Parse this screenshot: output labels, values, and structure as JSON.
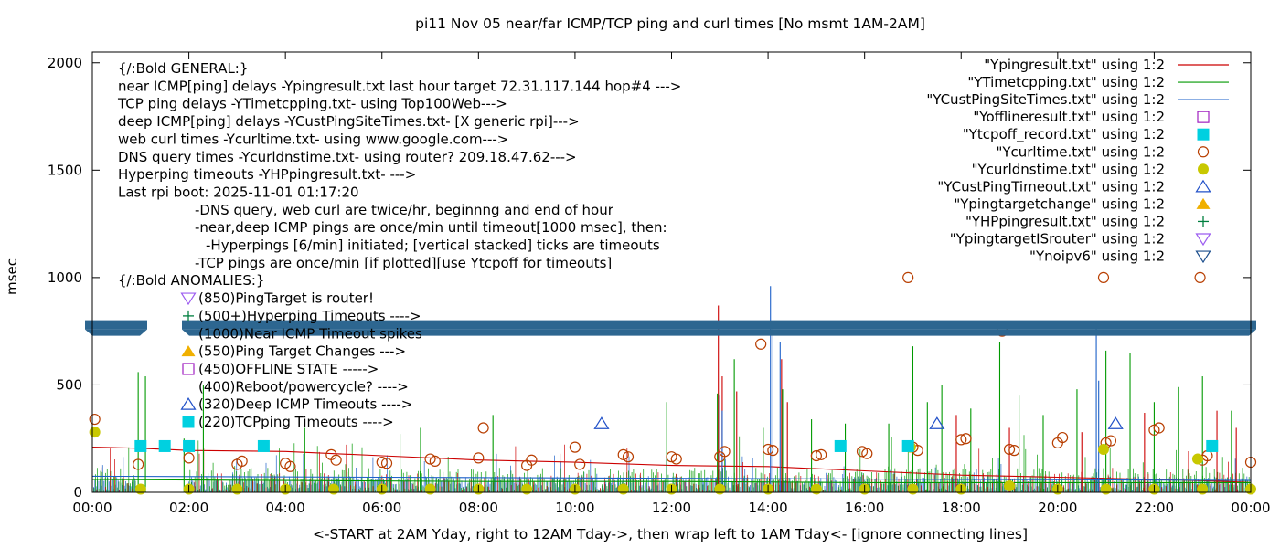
{
  "chart_data": {
    "type": "line",
    "title": "pi11 Nov 05  near/far ICMP/TCP ping and curl times [No msmt 1AM-2AM]",
    "xlabel": "<-START at 2AM Yday, right to 12AM Tday->, then wrap left to 1AM Tday<- [ignore connecting lines]",
    "ylabel": "msec",
    "xlim": [
      0,
      24
    ],
    "ylim": [
      0,
      2050
    ],
    "x_tick_values": [
      0,
      2,
      4,
      6,
      8,
      10,
      12,
      14,
      16,
      18,
      20,
      22,
      24
    ],
    "x_tick_labels": [
      "00:00",
      "02:00",
      "04:00",
      "06:00",
      "08:00",
      "10:00",
      "12:00",
      "14:00",
      "16:00",
      "18:00",
      "20:00",
      "22:00",
      "00:00"
    ],
    "y_tick_values": [
      0,
      500,
      1000,
      1500,
      2000
    ],
    "y_tick_labels": [
      "0",
      "500",
      "1000",
      "1500",
      "2000"
    ],
    "grid": false,
    "legend_position": "top-right",
    "colors": {
      "ping": "#cc0000",
      "tcp": "#009900",
      "cust": "#1a5fc8",
      "offline": "#a020c0",
      "tcpoff": "#00d0e0",
      "curl": "#b83e00",
      "dns": "#c8c800",
      "custTimeout": "#2050c8",
      "targetChange": "#f0b000",
      "hp": "#007f3f",
      "router": "#9c5cf0",
      "noipv6": "#1a4d8c",
      "band": "#2d6690"
    },
    "legend": [
      {
        "label": "\"Ypingresult.txt\" using 1:2",
        "symbol": "line",
        "color": "ping"
      },
      {
        "label": "\"YTimetcpping.txt\" using 1:2",
        "symbol": "line",
        "color": "tcp"
      },
      {
        "label": "\"YCustPingSiteTimes.txt\" using 1:2",
        "symbol": "line",
        "color": "cust"
      },
      {
        "label": "\"Yofflineresult.txt\" using 1:2",
        "symbol": "open-square",
        "color": "offline"
      },
      {
        "label": "\"Ytcpoff_record.txt\" using 1:2",
        "symbol": "filled-square",
        "color": "tcpoff"
      },
      {
        "label": "\"Ycurltime.txt\" using 1:2",
        "symbol": "open-circle",
        "color": "curl"
      },
      {
        "label": "\"Ycurldnstime.txt\" using 1:2",
        "symbol": "filled-circle",
        "color": "dns"
      },
      {
        "label": "\"YCustPingTimeout.txt\" using 1:2",
        "symbol": "open-triangle-up",
        "color": "custTimeout"
      },
      {
        "label": "\"Ypingtargetchange\" using 1:2",
        "symbol": "filled-triangle-up",
        "color": "targetChange"
      },
      {
        "label": "\"YHPpingresult.txt\" using 1:2",
        "symbol": "plus",
        "color": "hp"
      },
      {
        "label": "\"YpingtargetISrouter\" using 1:2",
        "symbol": "open-triangle-down",
        "color": "router"
      },
      {
        "label": "\"Ynoipv6\" using 1:2",
        "symbol": "open-triangle-down",
        "color": "noipv6"
      }
    ],
    "annotations": [
      {
        "text": "{/:Bold GENERAL:}"
      },
      {
        "text": "near ICMP[ping] delays -Ypingresult.txt last hour target 72.31.117.144 hop#4 --->"
      },
      {
        "text": "TCP ping delays -YTimetcpping.txt- using Top100Web--->"
      },
      {
        "text": "deep ICMP[ping] delays -YCustPingSiteTimes.txt- [X generic rpi]--->"
      },
      {
        "text": "web curl times -Ycurltime.txt- using www.google.com--->"
      },
      {
        "text": "DNS query times -Ycurldnstime.txt- using router? 209.18.47.62--->"
      },
      {
        "text": "Hyperping timeouts -YHPpingresult.txt- --->"
      },
      {
        "text": "Last rpi boot: 2025-11-01 01:17:20"
      },
      {
        "text": "-DNS query, web curl are twice/hr, beginnng and end of hour"
      },
      {
        "text": "-near,deep ICMP pings are once/min until timeout[1000 msec], then:"
      },
      {
        "text": "-Hyperpings [6/min] initiated; [vertical stacked] ticks are timeouts"
      },
      {
        "text": "-TCP pings are once/min [if plotted][use Ytcpoff for timeouts]"
      },
      {
        "text": "{/:Bold ANOMALIES:}"
      },
      {
        "text": "(850)PingTarget is router!",
        "symbol": "open-triangle-down",
        "color": "router"
      },
      {
        "text": "(500+)Hyperping Timeouts ---->",
        "symbol": "plus",
        "color": "hp"
      },
      {
        "text": "(1000)Near ICMP Timeout spikes"
      },
      {
        "text": "(550)Ping Target Changes --->",
        "symbol": "filled-triangle-up",
        "color": "targetChange"
      },
      {
        "text": "(450)OFFLINE STATE ----->",
        "symbol": "open-square",
        "color": "offline"
      },
      {
        "text": "(400)Reboot/powercycle? ---->"
      },
      {
        "text": "(320)Deep ICMP Timeouts ---->",
        "symbol": "open-triangle-up",
        "color": "custTimeout"
      },
      {
        "text": "(220)TCPping Timeouts ---->",
        "symbol": "filled-square",
        "color": "tcpoff"
      }
    ],
    "band": {
      "label": "Ynoipv6 markers (stacked)",
      "y": 780,
      "gaps_x": [
        [
          0.55,
          1.0
        ],
        [
          24.0,
          24.2
        ]
      ]
    },
    "series": [
      {
        "name": "\"Ypingresult.txt\" using 1:2",
        "kind": "line",
        "color": "ping",
        "x": [
          0,
          1,
          2,
          4,
          6,
          8,
          10,
          12,
          14,
          16,
          18,
          20,
          22,
          23.5,
          24
        ],
        "y": [
          210,
          205,
          195,
          190,
          170,
          150,
          140,
          125,
          120,
          100,
          80,
          70,
          60,
          50,
          45
        ]
      },
      {
        "name": "\"YTimetcpping.txt\" using 1:2",
        "kind": "line",
        "color": "tcp",
        "x": [
          0,
          4,
          8,
          12,
          16,
          20,
          24
        ],
        "y": [
          60,
          55,
          50,
          50,
          45,
          45,
          45
        ]
      },
      {
        "name": "\"YCustPingSiteTimes.txt\" using 1:2",
        "kind": "line",
        "color": "cust",
        "x": [
          0,
          6,
          12,
          18,
          24
        ],
        "y": [
          75,
          70,
          65,
          60,
          55
        ]
      },
      {
        "name": "spikes-ping",
        "kind": "spikes",
        "color": "ping",
        "x": [
          12.97,
          13.05,
          13.35,
          14.28,
          14.4,
          17.9,
          19.0,
          20.5,
          21.8,
          23.3,
          23.7
        ],
        "y": [
          870,
          540,
          470,
          620,
          420,
          360,
          300,
          280,
          370,
          380,
          300
        ]
      },
      {
        "name": "spikes-tcp",
        "kind": "spikes",
        "color": "tcp",
        "x": [
          0.95,
          1.1,
          1.9,
          2.3,
          4.4,
          6.8,
          8.3,
          11.9,
          12.95,
          13.3,
          13.9,
          14.3,
          14.9,
          15.6,
          16.5,
          17.0,
          17.3,
          17.6,
          18.2,
          18.8,
          19.2,
          19.7,
          20.4,
          21.0,
          21.5,
          22.0,
          22.5,
          23.0,
          23.6
        ],
        "y": [
          560,
          540,
          250,
          500,
          300,
          300,
          360,
          420,
          460,
          620,
          300,
          480,
          340,
          320,
          320,
          680,
          420,
          500,
          390,
          700,
          450,
          360,
          480,
          660,
          650,
          420,
          490,
          540,
          380
        ]
      },
      {
        "name": "spikes-cust",
        "kind": "spikes",
        "color": "cust",
        "x": [
          13.0,
          13.05,
          14.05,
          14.1,
          14.25,
          20.8,
          20.85
        ],
        "y": [
          450,
          380,
          960,
          800,
          700,
          760,
          520
        ]
      },
      {
        "name": "\"Ycurltime.txt\" using 1:2",
        "kind": "open-circle",
        "color": "curl",
        "x": [
          0.05,
          0.95,
          2.0,
          3.0,
          3.1,
          4.0,
          4.1,
          4.95,
          5.05,
          6.0,
          6.1,
          7.0,
          7.1,
          8.0,
          8.1,
          9.0,
          9.1,
          10.0,
          10.1,
          11.0,
          11.1,
          12.0,
          12.1,
          13.0,
          13.1,
          14.0,
          14.1,
          15.0,
          15.1,
          15.95,
          16.05,
          17.0,
          17.1,
          18.0,
          18.1,
          19.0,
          19.1,
          20.0,
          20.1,
          21.0,
          21.1,
          22.0,
          22.1,
          23.0,
          23.1,
          24.0,
          13.85,
          16.9,
          18.85,
          20.95,
          22.95
        ],
        "y": [
          340,
          130,
          160,
          130,
          145,
          135,
          120,
          175,
          150,
          140,
          135,
          155,
          145,
          160,
          300,
          125,
          150,
          210,
          130,
          175,
          165,
          165,
          155,
          165,
          190,
          200,
          195,
          170,
          175,
          190,
          180,
          210,
          195,
          245,
          250,
          200,
          195,
          230,
          255,
          230,
          240,
          290,
          300,
          150,
          170,
          140,
          690,
          1000,
          750,
          1000,
          1000
        ]
      },
      {
        "name": "\"Ycurldnstime.txt\" using 1:2",
        "kind": "filled-circle",
        "color": "dns",
        "x": [
          0.05,
          1.0,
          2.0,
          3.0,
          4.0,
          5.0,
          6.0,
          7.0,
          8.0,
          9.0,
          10.0,
          11.0,
          12.0,
          13.0,
          14.0,
          15.0,
          16.0,
          17.0,
          18.0,
          19.0,
          20.0,
          21.0,
          22.0,
          23.0,
          24.0,
          16.95,
          20.95,
          22.9
        ],
        "y": [
          280,
          15,
          15,
          15,
          15,
          15,
          15,
          15,
          15,
          15,
          15,
          15,
          15,
          15,
          15,
          15,
          15,
          15,
          15,
          30,
          15,
          15,
          15,
          15,
          15,
          210,
          200,
          155
        ]
      },
      {
        "name": "\"Ytcpoff_record.txt\" using 1:2",
        "kind": "filled-square",
        "color": "tcpoff",
        "x": [
          1.0,
          1.5,
          2.0,
          3.55,
          15.5,
          16.9,
          23.2
        ],
        "y": [
          215,
          215,
          215,
          215,
          215,
          215,
          215
        ]
      },
      {
        "name": "\"YCustPingTimeout.txt\" using 1:2",
        "kind": "open-triangle-up",
        "color": "custTimeout",
        "x": [
          10.55,
          17.5,
          21.2
        ],
        "y": [
          320,
          320,
          320
        ]
      }
    ]
  }
}
